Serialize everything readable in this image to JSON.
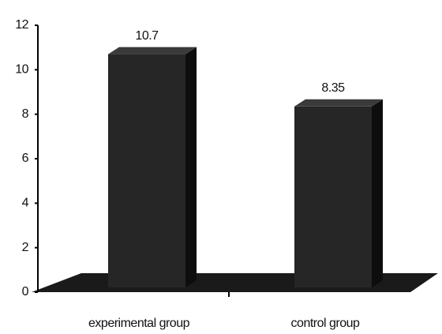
{
  "chart_data": {
    "type": "bar3d",
    "categories": [
      "experimental group",
      "control group"
    ],
    "values": [
      10.7,
      8.35
    ],
    "color": "#262626",
    "ylim": [
      0,
      12
    ],
    "yticks": [
      0,
      2,
      4,
      6,
      8,
      10,
      12
    ]
  }
}
